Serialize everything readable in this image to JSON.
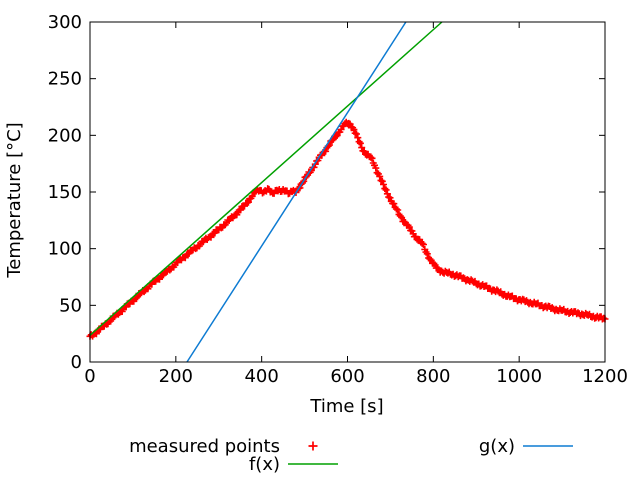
{
  "chart_data": {
    "type": "scatter",
    "title": "",
    "xlabel": "Time [s]",
    "ylabel": "Temperature [°C]",
    "xlim": [
      0,
      1200
    ],
    "ylim": [
      0,
      300
    ],
    "xticks": [
      0,
      200,
      400,
      600,
      800,
      1000,
      1200
    ],
    "yticks": [
      0,
      50,
      100,
      150,
      200,
      250,
      300
    ],
    "grid": false,
    "background_color": "#ffffff",
    "axis_color": "#000000",
    "legend": {
      "position": "below-plot",
      "rows": 2,
      "columns": 2,
      "order": "column-major"
    },
    "series": [
      {
        "name": "measured points",
        "style": "points",
        "marker": "plus",
        "color": "#ff0000",
        "sample_step_s": 3,
        "noise_amplitude_c": 1.6,
        "control_points": [
          [
            0,
            22
          ],
          [
            30,
            31
          ],
          [
            60,
            41
          ],
          [
            90,
            51
          ],
          [
            120,
            61
          ],
          [
            150,
            71
          ],
          [
            180,
            80
          ],
          [
            210,
            90
          ],
          [
            240,
            99
          ],
          [
            270,
            108
          ],
          [
            300,
            117
          ],
          [
            330,
            127
          ],
          [
            360,
            138
          ],
          [
            385,
            150
          ],
          [
            395,
            152
          ],
          [
            405,
            150
          ],
          [
            415,
            152
          ],
          [
            425,
            149
          ],
          [
            435,
            152
          ],
          [
            445,
            150
          ],
          [
            455,
            152
          ],
          [
            465,
            149
          ],
          [
            472,
            151
          ],
          [
            478,
            149
          ],
          [
            485,
            153
          ],
          [
            500,
            161
          ],
          [
            520,
            172
          ],
          [
            540,
            183
          ],
          [
            560,
            193
          ],
          [
            580,
            203
          ],
          [
            592,
            209
          ],
          [
            600,
            211
          ],
          [
            606,
            210
          ],
          [
            615,
            205
          ],
          [
            622,
            199
          ],
          [
            630,
            192
          ],
          [
            638,
            186
          ],
          [
            645,
            183
          ],
          [
            652,
            181
          ],
          [
            658,
            178
          ],
          [
            665,
            172
          ],
          [
            672,
            166
          ],
          [
            680,
            159
          ],
          [
            690,
            151
          ],
          [
            700,
            144
          ],
          [
            710,
            137
          ],
          [
            720,
            131
          ],
          [
            730,
            125
          ],
          [
            740,
            120
          ],
          [
            750,
            115
          ],
          [
            762,
            109
          ],
          [
            775,
            104
          ],
          [
            785,
            96
          ],
          [
            795,
            89
          ],
          [
            805,
            84
          ],
          [
            815,
            81
          ],
          [
            825,
            79
          ],
          [
            840,
            78
          ],
          [
            855,
            76
          ],
          [
            870,
            74
          ],
          [
            890,
            71
          ],
          [
            910,
            68
          ],
          [
            930,
            65
          ],
          [
            950,
            62
          ],
          [
            975,
            58
          ],
          [
            1000,
            55
          ],
          [
            1030,
            52
          ],
          [
            1060,
            49
          ],
          [
            1090,
            46
          ],
          [
            1120,
            44
          ],
          [
            1150,
            42
          ],
          [
            1175,
            40
          ],
          [
            1200,
            38
          ]
        ]
      },
      {
        "name": "f(x)",
        "style": "line",
        "fit": "linear",
        "color": "#00a000",
        "points": [
          [
            0,
            23.5
          ],
          [
            820,
            300
          ]
        ]
      },
      {
        "name": "g(x)",
        "style": "line",
        "fit": "linear",
        "color": "#0d7bd2",
        "points": [
          [
            226,
            0
          ],
          [
            736,
            300
          ]
        ]
      }
    ]
  }
}
